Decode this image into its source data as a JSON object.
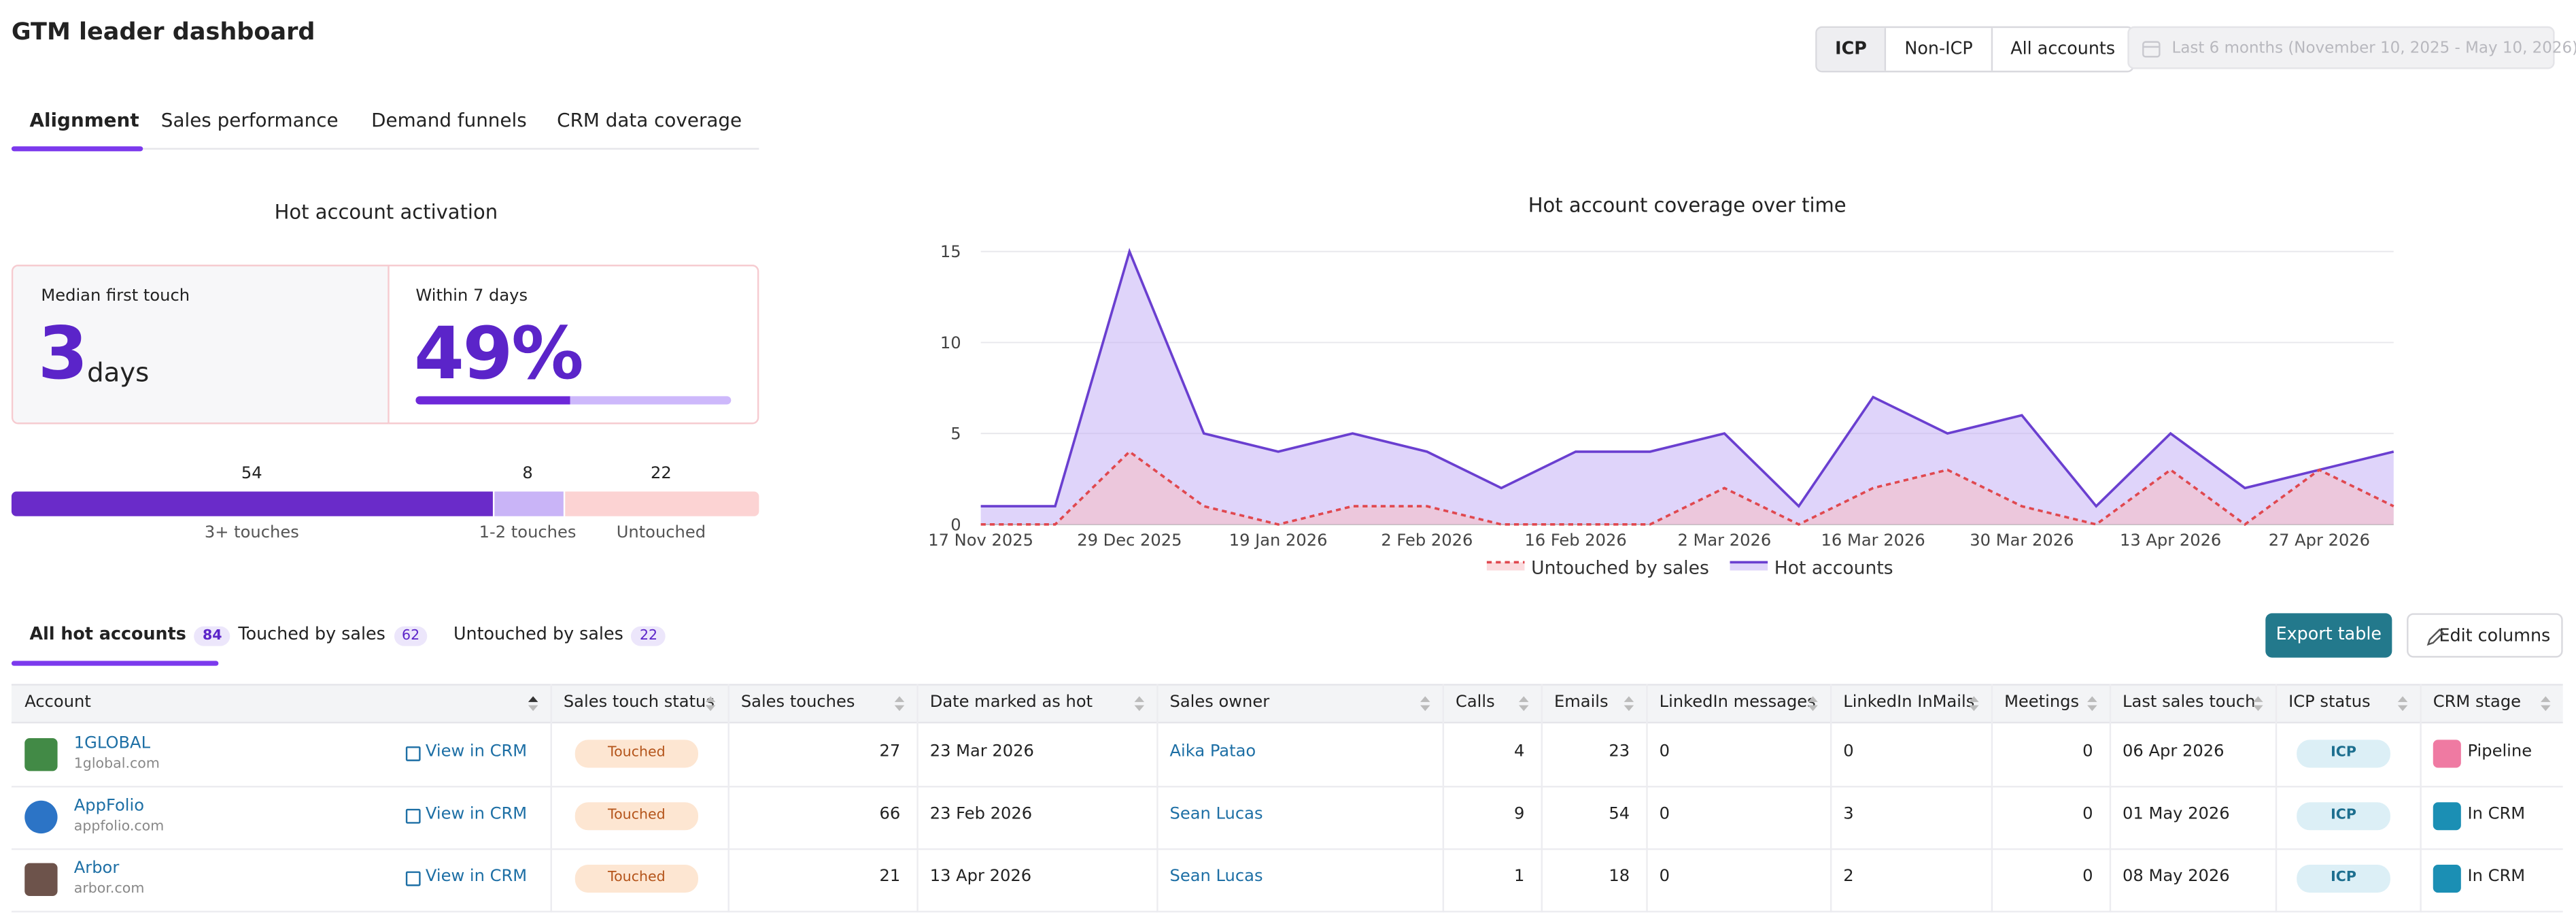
{
  "header": {
    "title": "GTM leader dashboard",
    "segments": [
      "ICP",
      "Non-ICP",
      "All accounts"
    ],
    "date_range": "Last 6 months (November 10, 2025 - May 10, 2026)"
  },
  "tabs": [
    "Alignment",
    "Sales performance",
    "Demand funnels",
    "CRM data coverage"
  ],
  "activation": {
    "title": "Hot account activation",
    "median_label": "Median first touch",
    "median_value": 3,
    "median_unit": "days",
    "within_label": "Within 7 days",
    "within_value": 49,
    "within_value_label": "49%",
    "touch_counts": [
      54,
      8,
      22
    ],
    "touch_labels": [
      "3+ touches",
      "1-2 touches",
      "Untouched"
    ]
  },
  "chart_data": {
    "type": "line",
    "title": "Hot account coverage over time",
    "categories": [
      "17 Nov 2025",
      null,
      "29 Dec 2025",
      null,
      "19 Jan 2026",
      null,
      "2 Feb 2026",
      null,
      "16 Feb 2026",
      null,
      "2 Mar 2026",
      null,
      "16 Mar 2026",
      null,
      "30 Mar 2026",
      null,
      "13 Apr 2026",
      null,
      "27 Apr 2026",
      null
    ],
    "series": [
      {
        "name": "Untouched by sales",
        "color": "#e0484f",
        "values": [
          0,
          0,
          4,
          1,
          0,
          1,
          1,
          0,
          0,
          0,
          2,
          0,
          2,
          3,
          1,
          0,
          3,
          0,
          3,
          1
        ]
      },
      {
        "name": "Hot accounts",
        "color": "#6a3fd0",
        "values": [
          1,
          1,
          15,
          5,
          4,
          5,
          4,
          2,
          4,
          4,
          5,
          1,
          7,
          5,
          6,
          1,
          5,
          2,
          3,
          4
        ]
      }
    ],
    "ylim": [
      0,
      15
    ],
    "yticks": [
      0,
      5,
      10,
      15
    ],
    "grid": true,
    "legend": "bottom"
  },
  "account_tabs": [
    {
      "label": "All hot accounts",
      "count": 84
    },
    {
      "label": "Touched by sales",
      "count": 62
    },
    {
      "label": "Untouched by sales",
      "count": 22
    }
  ],
  "buttons": {
    "export": "Export table",
    "edit": "Edit columns"
  },
  "table": {
    "columns": [
      "Account",
      "Sales touch status",
      "Sales touches",
      "Date marked as hot",
      "Sales owner",
      "Calls",
      "Emails",
      "LinkedIn messages",
      "LinkedIn InMails",
      "Meetings",
      "Last sales touch",
      "ICP status",
      "CRM stage"
    ],
    "rows": [
      {
        "account": "1GLOBAL",
        "domain": "1global.com",
        "crm_link": "View in CRM",
        "status": "Touched",
        "touches": 27,
        "date_hot": "23 Mar 2026",
        "owner": "Aika Patao",
        "calls": 4,
        "emails": 23,
        "li_messages": 0,
        "li_inmails": 0,
        "meetings": 0,
        "last_touch": "06 Apr 2026",
        "icp": "ICP",
        "crm_stage": "Pipeline"
      },
      {
        "account": "AppFolio",
        "domain": "appfolio.com",
        "crm_link": "View in CRM",
        "status": "Touched",
        "touches": 66,
        "date_hot": "23 Feb 2026",
        "owner": "Sean Lucas",
        "calls": 9,
        "emails": 54,
        "li_messages": 0,
        "li_inmails": 3,
        "meetings": 0,
        "last_touch": "01 May 2026",
        "icp": "ICP",
        "crm_stage": "In CRM"
      },
      {
        "account": "Arbor",
        "domain": "arbor.com",
        "crm_link": "View in CRM",
        "status": "Touched",
        "touches": 21,
        "date_hot": "13 Apr 2026",
        "owner": "Sean Lucas",
        "calls": 1,
        "emails": 18,
        "li_messages": 0,
        "li_inmails": 2,
        "meetings": 0,
        "last_touch": "08 May 2026",
        "icp": "ICP",
        "crm_stage": "In CRM"
      }
    ]
  }
}
